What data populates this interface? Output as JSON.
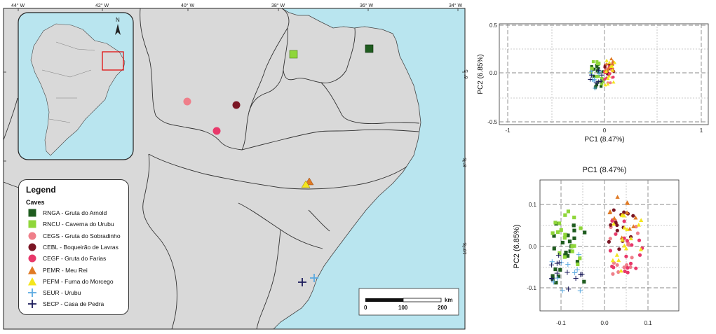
{
  "map": {
    "lon_labels": [
      "44° W",
      "42° W",
      "40° W",
      "38° W",
      "36° W",
      "34° W"
    ],
    "lat_labels": [
      "6° S",
      "8° S",
      "10° S"
    ],
    "colors": {
      "ocean": "#b9e5ef",
      "land": "#d9d9d9",
      "border": "#333333"
    },
    "scalebar": {
      "ticks": [
        "0",
        "100",
        "200"
      ],
      "unit": "km"
    }
  },
  "legend": {
    "title": "Legend",
    "subtitle": "Caves",
    "items": [
      {
        "code": "RNGA",
        "label": "RNGA - Gruta do Arnold",
        "shape": "square",
        "color": "#1f5c1f"
      },
      {
        "code": "RNCU",
        "label": "RNCU - Caverna do Urubu",
        "shape": "square",
        "color": "#8fd63a"
      },
      {
        "code": "CEGS",
        "label": "CEGS - Gruta do Sobradinho",
        "shape": "circle",
        "color": "#ef7f8a"
      },
      {
        "code": "CEBL",
        "label": "CEBL - Boqueirão de Lavras",
        "shape": "circle",
        "color": "#7a1524"
      },
      {
        "code": "CEGF",
        "label": "CEGF - Gruta do Farias",
        "shape": "circle",
        "color": "#e8386a"
      },
      {
        "code": "PEMR",
        "label": "PEMR - Meu Rei",
        "shape": "triangle",
        "color": "#e07a24"
      },
      {
        "code": "PEFM",
        "label": "PEFM - Furna do Morcego",
        "shape": "triangle",
        "color": "#f4e61e"
      },
      {
        "code": "SEUR",
        "label": "SEUR - Urubu",
        "shape": "plus",
        "color": "#5aa9e0"
      },
      {
        "code": "SECP",
        "label": "SECP - Casa de Pedra",
        "shape": "plus",
        "color": "#1a1a5a"
      }
    ]
  },
  "pca_top": {
    "xlabel": "PC1 (8.47%)",
    "ylabel": "PC2 (6.85%)",
    "xticks": [
      "-1",
      "0",
      "1"
    ],
    "yticks": [
      "0.5",
      "0.0",
      "-0.5"
    ]
  },
  "pca_bottom": {
    "title": "PC1 (8.47%)",
    "ylabel": "PC2 (6.85%)",
    "xticks": [
      "-0.1",
      "0.0",
      "0.1"
    ],
    "yticks": [
      "0.1",
      "0.0",
      "-0.1"
    ]
  }
}
